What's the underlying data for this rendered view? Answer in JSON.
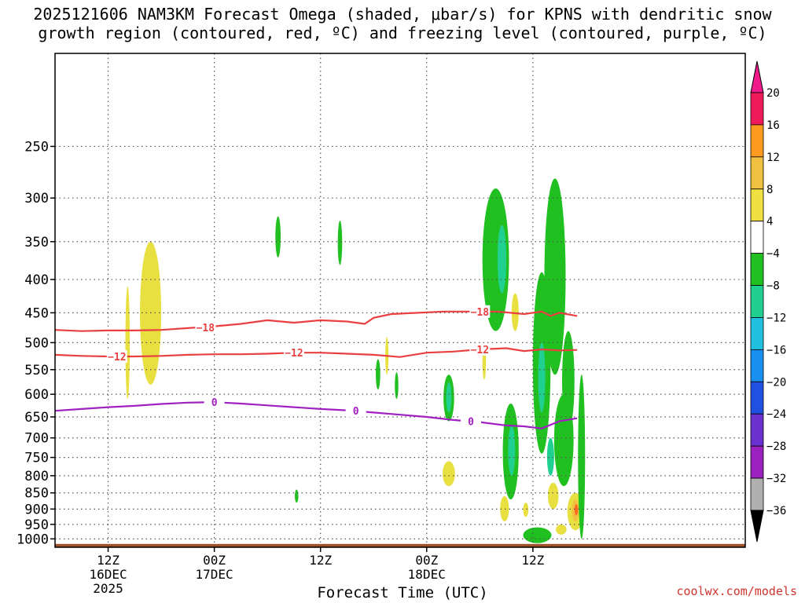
{
  "chart_data": {
    "type": "heatmap",
    "title_line1": "2025121606 NAM3KM Forecast Omega (shaded, μbar/s) for KPNS with dendritic snow",
    "title_line2": "growth region (contoured, red, ºC) and freezing level (contoured, purple, ºC)",
    "xlabel": "Forecast Time (UTC)",
    "credit": "coolwx.com/models",
    "x_range_hours": [
      6,
      84
    ],
    "y_scale": "log-pressure",
    "y_range_hpa": [
      1030,
      180
    ],
    "y_ticks": [
      250,
      300,
      350,
      400,
      450,
      500,
      550,
      600,
      650,
      700,
      750,
      800,
      850,
      900,
      950,
      1000
    ],
    "x_ticks": [
      {
        "hour": 12,
        "lines": [
          "12Z",
          "16DEC",
          "2025"
        ]
      },
      {
        "hour": 24,
        "lines": [
          "00Z",
          "17DEC"
        ]
      },
      {
        "hour": 36,
        "lines": [
          "12Z"
        ]
      },
      {
        "hour": 48,
        "lines": [
          "00Z",
          "18DEC"
        ]
      },
      {
        "hour": 60,
        "lines": [
          "12Z"
        ]
      }
    ],
    "grid": true,
    "colorbar": {
      "labels": [
        "20",
        "16",
        "12",
        "8",
        "4",
        "−4",
        "−8",
        "−12",
        "−16",
        "−20",
        "−24",
        "−28",
        "−32",
        "−36"
      ],
      "colors": [
        "#f01a5a",
        "#ff9a20",
        "#f0c040",
        "#f0e040",
        "#ffffff",
        "#20c020",
        "#20d090",
        "#20c0e0",
        "#1890f0",
        "#2050e0",
        "#6a30d0",
        "#9a20c0",
        "#b0b0b0"
      ]
    },
    "contours": [
      {
        "label": "−18",
        "color": "#e84040",
        "points": [
          [
            6,
            478
          ],
          [
            9,
            480
          ],
          [
            12,
            479
          ],
          [
            15,
            479
          ],
          [
            18,
            478
          ],
          [
            21,
            475
          ],
          [
            24,
            472
          ],
          [
            27,
            468
          ],
          [
            30,
            462
          ],
          [
            33,
            466
          ],
          [
            36,
            462
          ],
          [
            39,
            464
          ],
          [
            41,
            468
          ],
          [
            42,
            458
          ],
          [
            44,
            452
          ],
          [
            47,
            450
          ],
          [
            50,
            448
          ],
          [
            53,
            448
          ],
          [
            56,
            448
          ],
          [
            59,
            452
          ],
          [
            61,
            448
          ],
          [
            62,
            455
          ],
          [
            63,
            450
          ],
          [
            65,
            455
          ]
        ],
        "label_at": [
          [
            23,
            474
          ],
          [
            54,
            448
          ]
        ]
      },
      {
        "label": "−12",
        "color": "#e84040",
        "points": [
          [
            6,
            522
          ],
          [
            9,
            524
          ],
          [
            12,
            525
          ],
          [
            15,
            525
          ],
          [
            18,
            524
          ],
          [
            21,
            522
          ],
          [
            24,
            521
          ],
          [
            27,
            521
          ],
          [
            30,
            520
          ],
          [
            33,
            518
          ],
          [
            36,
            518
          ],
          [
            39,
            520
          ],
          [
            42,
            522
          ],
          [
            45,
            526
          ],
          [
            48,
            518
          ],
          [
            51,
            516
          ],
          [
            54,
            512
          ],
          [
            57,
            510
          ],
          [
            59,
            515
          ],
          [
            61,
            512
          ],
          [
            63,
            514
          ],
          [
            65,
            513
          ]
        ],
        "label_at": [
          [
            13,
            525
          ],
          [
            33,
            518
          ],
          [
            54,
            512
          ]
        ]
      },
      {
        "label": "0",
        "color": "#a020c0",
        "points": [
          [
            6,
            636
          ],
          [
            9,
            632
          ],
          [
            12,
            628
          ],
          [
            15,
            625
          ],
          [
            18,
            621
          ],
          [
            21,
            618
          ],
          [
            24,
            617
          ],
          [
            27,
            620
          ],
          [
            30,
            624
          ],
          [
            33,
            628
          ],
          [
            36,
            632
          ],
          [
            39,
            635
          ],
          [
            42,
            640
          ],
          [
            45,
            645
          ],
          [
            48,
            650
          ],
          [
            51,
            657
          ],
          [
            54,
            662
          ],
          [
            57,
            670
          ],
          [
            59,
            672
          ],
          [
            61,
            677
          ],
          [
            63,
            660
          ],
          [
            65,
            653
          ]
        ],
        "label_at": [
          [
            24,
            617
          ],
          [
            40,
            636
          ],
          [
            53,
            660
          ]
        ]
      }
    ],
    "shaded_regions": [
      {
        "value": 4,
        "center": [
          16.8,
          450
        ],
        "hw": 1.2,
        "ptop": 350,
        "pbot": 580
      },
      {
        "value": 4,
        "center": [
          14.2,
          470
        ],
        "hw": 0.25,
        "ptop": 410,
        "pbot": 610
      },
      {
        "value": -4,
        "center": [
          31.2,
          345
        ],
        "hw": 0.3,
        "ptop": 320,
        "pbot": 370
      },
      {
        "value": -4,
        "center": [
          38.2,
          350
        ],
        "hw": 0.25,
        "ptop": 325,
        "pbot": 380
      },
      {
        "value": -4,
        "center": [
          42.5,
          560
        ],
        "hw": 0.25,
        "ptop": 530,
        "pbot": 590
      },
      {
        "value": -4,
        "center": [
          44.6,
          580
        ],
        "hw": 0.2,
        "ptop": 555,
        "pbot": 610
      },
      {
        "value": -4,
        "center": [
          33.3,
          860
        ],
        "hw": 0.2,
        "ptop": 840,
        "pbot": 880
      },
      {
        "value": 4,
        "center": [
          43.5,
          520
        ],
        "hw": 0.15,
        "ptop": 490,
        "pbot": 560
      },
      {
        "value": 4,
        "center": [
          50.5,
          790
        ],
        "hw": 0.7,
        "ptop": 760,
        "pbot": 830
      },
      {
        "value": -4,
        "center": [
          50.5,
          610
        ],
        "hw": 0.6,
        "ptop": 560,
        "pbot": 660
      },
      {
        "value": -8,
        "center": [
          50.5,
          605
        ],
        "hw": 0.3,
        "ptop": 575,
        "pbot": 640
      },
      {
        "value": -4,
        "center": [
          55.8,
          390
        ],
        "hw": 1.5,
        "ptop": 290,
        "pbot": 480
      },
      {
        "value": -8,
        "center": [
          56.5,
          360
        ],
        "hw": 0.5,
        "ptop": 330,
        "pbot": 420
      },
      {
        "value": -4,
        "center": [
          57.5,
          710
        ],
        "hw": 0.9,
        "ptop": 620,
        "pbot": 870
      },
      {
        "value": -8,
        "center": [
          57.6,
          720
        ],
        "hw": 0.4,
        "ptop": 670,
        "pbot": 800
      },
      {
        "value": 4,
        "center": [
          54.5,
          530
        ],
        "hw": 0.2,
        "ptop": 500,
        "pbot": 570
      },
      {
        "value": 4,
        "center": [
          58,
          450
        ],
        "hw": 0.4,
        "ptop": 420,
        "pbot": 480
      },
      {
        "value": 4,
        "center": [
          56.8,
          895
        ],
        "hw": 0.5,
        "ptop": 860,
        "pbot": 940
      },
      {
        "value": -4,
        "center": [
          61.0,
          500
        ],
        "hw": 1.0,
        "ptop": 390,
        "pbot": 740
      },
      {
        "value": -4,
        "center": [
          62.5,
          400
        ],
        "hw": 1.2,
        "ptop": 280,
        "pbot": 560
      },
      {
        "value": -8,
        "center": [
          61.0,
          560
        ],
        "hw": 0.4,
        "ptop": 500,
        "pbot": 640
      },
      {
        "value": -4,
        "center": [
          63.5,
          700
        ],
        "hw": 1.1,
        "ptop": 600,
        "pbot": 830
      },
      {
        "value": -8,
        "center": [
          62.0,
          750
        ],
        "hw": 0.4,
        "ptop": 700,
        "pbot": 800
      },
      {
        "value": -4,
        "center": [
          64.0,
          580
        ],
        "hw": 0.7,
        "ptop": 480,
        "pbot": 680
      },
      {
        "value": 4,
        "center": [
          62.3,
          850
        ],
        "hw": 0.6,
        "ptop": 820,
        "pbot": 900
      },
      {
        "value": 4,
        "center": [
          64.8,
          905
        ],
        "hw": 0.9,
        "ptop": 850,
        "pbot": 970
      },
      {
        "value": 8,
        "center": [
          64.8,
          900
        ],
        "hw": 0.4,
        "ptop": 870,
        "pbot": 940
      },
      {
        "value": 16,
        "center": [
          64.9,
          900
        ],
        "hw": 0.2,
        "ptop": 885,
        "pbot": 920
      },
      {
        "value": -4,
        "center": [
          60.5,
          995
        ],
        "hw": 1.6,
        "ptop": 960,
        "pbot": 1015
      },
      {
        "value": 4,
        "center": [
          63.2,
          965
        ],
        "hw": 0.6,
        "ptop": 950,
        "pbot": 985
      },
      {
        "value": 4,
        "center": [
          59.2,
          900
        ],
        "hw": 0.3,
        "ptop": 880,
        "pbot": 925
      },
      {
        "value": -4,
        "center": [
          65.5,
          800
        ],
        "hw": 0.4,
        "ptop": 560,
        "pbot": 1000
      }
    ],
    "terrain_color": "#a05028"
  }
}
